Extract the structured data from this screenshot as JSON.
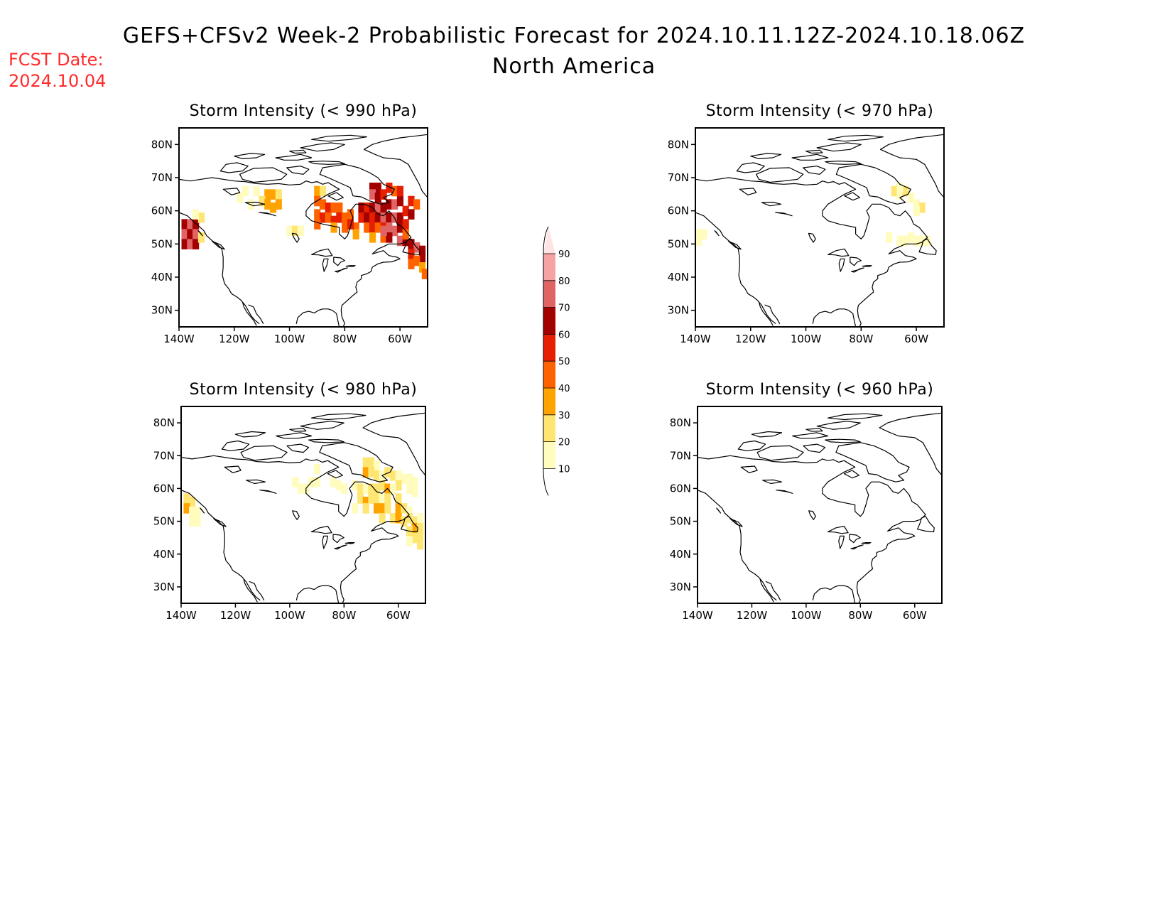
{
  "header": {
    "title": "GEFS+CFSv2 Week-2 Probabilistic Forecast for 2024.10.11.12Z-2024.10.18.06Z",
    "subtitle": "North America",
    "fcst_label": "FCST Date:",
    "fcst_date": "2024.10.04"
  },
  "axes": {
    "lat_labels": [
      "80N",
      "70N",
      "60N",
      "50N",
      "40N",
      "30N"
    ],
    "lat_values": [
      80,
      70,
      60,
      50,
      40,
      30
    ],
    "lon_labels": [
      "140W",
      "120W",
      "100W",
      "80W",
      "60W"
    ],
    "lon_values": [
      -140,
      -120,
      -100,
      -80,
      -60
    ],
    "lon_range": [
      -140,
      -50
    ],
    "lat_range": [
      25,
      85
    ]
  },
  "panels": [
    {
      "title": "Storm Intensity (< 990 hPa)",
      "cells": [
        [
          -138,
          56,
          60
        ],
        [
          -136,
          56,
          70
        ],
        [
          -134,
          56,
          60
        ],
        [
          -138,
          53,
          70
        ],
        [
          -136,
          53,
          60
        ],
        [
          -134,
          53,
          70
        ],
        [
          -138,
          50,
          60
        ],
        [
          -136,
          50,
          70
        ],
        [
          -134,
          50,
          60
        ],
        [
          -132,
          58,
          20
        ],
        [
          -134,
          59,
          10
        ],
        [
          -132,
          52,
          20
        ],
        [
          -108,
          65,
          30
        ],
        [
          -106,
          65,
          30
        ],
        [
          -104,
          65,
          20
        ],
        [
          -110,
          63,
          20
        ],
        [
          -108,
          62,
          30
        ],
        [
          -106,
          61,
          30
        ],
        [
          -104,
          62,
          30
        ],
        [
          -116,
          66,
          10
        ],
        [
          -112,
          66,
          10
        ],
        [
          -118,
          64,
          10
        ],
        [
          -114,
          62,
          10
        ],
        [
          -100,
          54,
          10
        ],
        [
          -98,
          54,
          20
        ],
        [
          -96,
          54,
          10
        ],
        [
          -90,
          66,
          30
        ],
        [
          -88,
          66,
          20
        ],
        [
          -90,
          63,
          40
        ],
        [
          -88,
          62,
          40
        ],
        [
          -86,
          61,
          50
        ],
        [
          -84,
          61,
          40
        ],
        [
          -82,
          61,
          40
        ],
        [
          -90,
          59,
          40
        ],
        [
          -88,
          58,
          50
        ],
        [
          -86,
          58,
          40
        ],
        [
          -84,
          57,
          50
        ],
        [
          -82,
          58,
          50
        ],
        [
          -80,
          58,
          40
        ],
        [
          -78,
          59,
          40
        ],
        [
          -90,
          56,
          40
        ],
        [
          -84,
          55,
          30
        ],
        [
          -80,
          55,
          40
        ],
        [
          -76,
          55,
          40
        ],
        [
          -76,
          53,
          30
        ],
        [
          -78,
          56,
          50
        ],
        [
          -74,
          61,
          60
        ],
        [
          -72,
          61,
          50
        ],
        [
          -70,
          61,
          60
        ],
        [
          -68,
          61,
          70
        ],
        [
          -66,
          61,
          60
        ],
        [
          -64,
          62,
          60
        ],
        [
          -62,
          62,
          70
        ],
        [
          -60,
          63,
          60
        ],
        [
          -74,
          58,
          50
        ],
        [
          -72,
          58,
          60
        ],
        [
          -70,
          58,
          50
        ],
        [
          -68,
          58,
          60
        ],
        [
          -66,
          58,
          70
        ],
        [
          -64,
          58,
          60
        ],
        [
          -62,
          58,
          70
        ],
        [
          -60,
          58,
          60
        ],
        [
          -72,
          55,
          40
        ],
        [
          -70,
          55,
          50
        ],
        [
          -68,
          55,
          40
        ],
        [
          -66,
          55,
          50
        ],
        [
          -64,
          55,
          70
        ],
        [
          -62,
          54,
          70
        ],
        [
          -60,
          55,
          60
        ],
        [
          -58,
          56,
          50
        ],
        [
          -70,
          67,
          60
        ],
        [
          -68,
          67,
          60
        ],
        [
          -70,
          65,
          70
        ],
        [
          -68,
          64,
          60
        ],
        [
          -66,
          65,
          50
        ],
        [
          -62,
          66,
          40
        ],
        [
          -60,
          66,
          50
        ],
        [
          -64,
          67,
          50
        ],
        [
          -56,
          63,
          50
        ],
        [
          -54,
          62,
          40
        ],
        [
          -58,
          60,
          50
        ],
        [
          -56,
          59,
          60
        ],
        [
          -70,
          52,
          30
        ],
        [
          -66,
          52,
          40
        ],
        [
          -64,
          52,
          60
        ],
        [
          -60,
          51,
          70
        ],
        [
          -58,
          51,
          60
        ],
        [
          -56,
          50,
          60
        ],
        [
          -54,
          49,
          70
        ],
        [
          -52,
          48,
          60
        ],
        [
          -56,
          47,
          50
        ],
        [
          -52,
          46,
          60
        ],
        [
          -54,
          45,
          40
        ],
        [
          -56,
          44,
          40
        ],
        [
          -52,
          43,
          30
        ],
        [
          -51,
          41,
          40
        ],
        [
          -58,
          53,
          40
        ],
        [
          -66,
          54,
          70
        ]
      ]
    },
    {
      "title": "Storm Intensity (< 970 hPa)",
      "cells": [
        [
          -139,
          53,
          10
        ],
        [
          -137,
          53,
          10
        ],
        [
          -139,
          51,
          10
        ],
        [
          -68,
          66,
          20
        ],
        [
          -66,
          65,
          10
        ],
        [
          -64,
          66,
          20
        ],
        [
          -66,
          67,
          10
        ],
        [
          -62,
          64,
          10
        ],
        [
          -60,
          62,
          10
        ],
        [
          -58,
          61,
          20
        ],
        [
          -60,
          60,
          10
        ],
        [
          -70,
          52,
          10
        ],
        [
          -66,
          51,
          10
        ],
        [
          -62,
          52,
          10
        ],
        [
          -60,
          51,
          10
        ],
        [
          -58,
          51,
          10
        ],
        [
          -56,
          51,
          10
        ],
        [
          -64,
          51,
          10
        ]
      ]
    },
    {
      "title": "Storm Intensity (< 980 hPa)",
      "cells": [
        [
          -138,
          57,
          20
        ],
        [
          -136,
          56,
          20
        ],
        [
          -138,
          54,
          30
        ],
        [
          -136,
          53,
          10
        ],
        [
          -134,
          53,
          10
        ],
        [
          -136,
          50,
          10
        ],
        [
          -134,
          50,
          10
        ],
        [
          -90,
          66,
          10
        ],
        [
          -98,
          62,
          10
        ],
        [
          -96,
          60,
          10
        ],
        [
          -94,
          60,
          10
        ],
        [
          -92,
          62,
          10
        ],
        [
          -90,
          62,
          10
        ],
        [
          -84,
          62,
          10
        ],
        [
          -82,
          61,
          10
        ],
        [
          -80,
          60,
          10
        ],
        [
          -72,
          68,
          20
        ],
        [
          -70,
          68,
          20
        ],
        [
          -68,
          67,
          10
        ],
        [
          -72,
          65,
          30
        ],
        [
          -70,
          65,
          20
        ],
        [
          -68,
          64,
          20
        ],
        [
          -66,
          64,
          10
        ],
        [
          -64,
          65,
          20
        ],
        [
          -62,
          64,
          20
        ],
        [
          -60,
          64,
          10
        ],
        [
          -58,
          63,
          10
        ],
        [
          -56,
          63,
          10
        ],
        [
          -54,
          62,
          10
        ],
        [
          -60,
          61,
          20
        ],
        [
          -56,
          60,
          10
        ],
        [
          -54,
          59,
          10
        ],
        [
          -76,
          61,
          10
        ],
        [
          -74,
          60,
          20
        ],
        [
          -72,
          60,
          10
        ],
        [
          -70,
          60,
          20
        ],
        [
          -68,
          60,
          20
        ],
        [
          -66,
          61,
          20
        ],
        [
          -64,
          60,
          30
        ],
        [
          -62,
          60,
          10
        ],
        [
          -74,
          57,
          20
        ],
        [
          -72,
          56,
          30
        ],
        [
          -70,
          57,
          20
        ],
        [
          -68,
          57,
          20
        ],
        [
          -66,
          57,
          10
        ],
        [
          -64,
          57,
          20
        ],
        [
          -60,
          57,
          20
        ],
        [
          -76,
          54,
          10
        ],
        [
          -72,
          54,
          20
        ],
        [
          -68,
          54,
          30
        ],
        [
          -66,
          54,
          30
        ],
        [
          -64,
          54,
          20
        ],
        [
          -60,
          54,
          30
        ],
        [
          -58,
          54,
          20
        ],
        [
          -56,
          53,
          10
        ],
        [
          -66,
          51,
          20
        ],
        [
          -62,
          51,
          20
        ],
        [
          -60,
          51,
          30
        ],
        [
          -58,
          50,
          20
        ],
        [
          -56,
          51,
          20
        ],
        [
          -54,
          50,
          20
        ],
        [
          -52,
          51,
          10
        ],
        [
          -54,
          48,
          30
        ],
        [
          -52,
          48,
          20
        ],
        [
          -56,
          47,
          20
        ],
        [
          -52,
          46,
          20
        ],
        [
          -54,
          45,
          20
        ],
        [
          -56,
          44,
          10
        ],
        [
          -52,
          43,
          20
        ]
      ]
    },
    {
      "title": "Storm Intensity (< 960 hPa)",
      "cells": []
    }
  ],
  "colorbar": {
    "ticks": [
      "10",
      "20",
      "30",
      "40",
      "50",
      "60",
      "70",
      "80",
      "90"
    ],
    "bins": [
      10,
      20,
      30,
      40,
      50,
      60,
      70,
      80,
      90
    ],
    "colors": [
      "#fffcbd",
      "#ffe571",
      "#ffa300",
      "#ff6300",
      "#e51f00",
      "#a30000",
      "#e06464",
      "#f5a3a3",
      "#ffe4e4"
    ]
  },
  "style": {
    "coast_color": "#000000",
    "fcst_color": "#ff2a2a"
  }
}
